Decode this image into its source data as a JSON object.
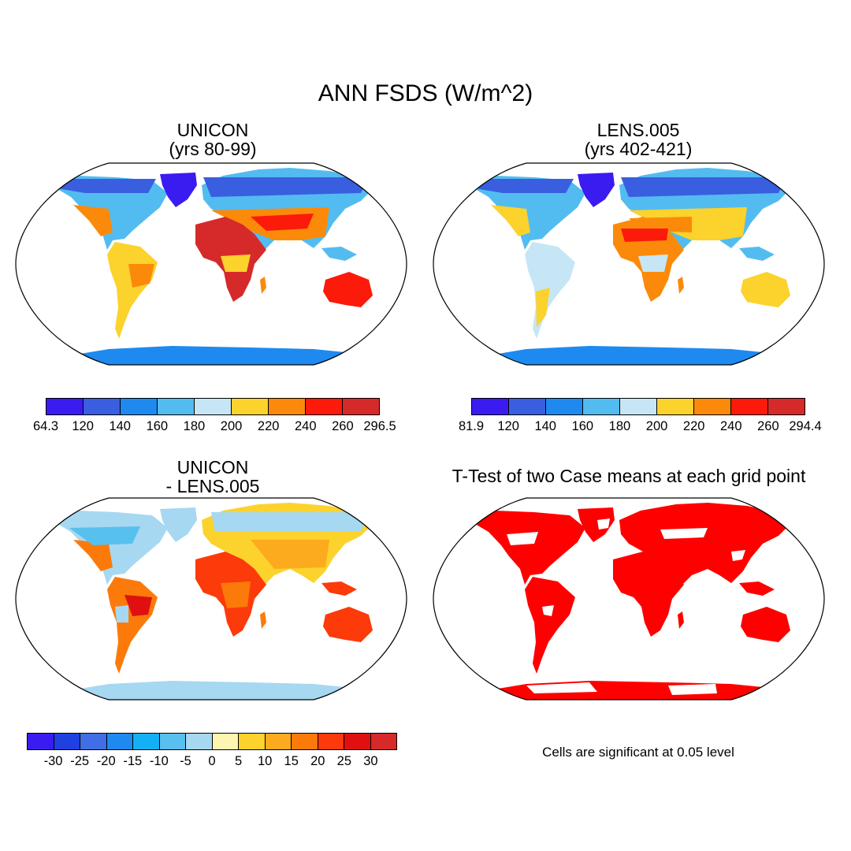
{
  "title": "ANN FSDS (W/m^2)",
  "panels": {
    "top_left": {
      "title_line1": "UNICON",
      "title_line2": "(yrs 80-99)"
    },
    "top_right": {
      "title_line1": "LENS.005",
      "title_line2": "(yrs 402-421)"
    },
    "bottom_left": {
      "title_line1": "UNICON",
      "title_line2": "- LENS.005"
    },
    "bottom_right": {
      "title": "T-Test of two Case means at each grid point",
      "note": "Cells are significant at 0.05 level"
    }
  },
  "colorbars": {
    "top_left": {
      "colors": [
        "#3a1cf0",
        "#3a5ee0",
        "#1e8af0",
        "#52bcf0",
        "#c6e6f5",
        "#fcd22c",
        "#fc8a0a",
        "#fc1a0a",
        "#d62a2a"
      ],
      "labels": [
        "64.3",
        "120",
        "140",
        "160",
        "180",
        "200",
        "220",
        "240",
        "260",
        "296.5"
      ]
    },
    "top_right": {
      "colors": [
        "#3a1cf0",
        "#3a5ee0",
        "#1e8af0",
        "#52bcf0",
        "#c6e6f5",
        "#fcd22c",
        "#fc8a0a",
        "#fc1a0a",
        "#d62a2a"
      ],
      "labels": [
        "81.9",
        "120",
        "140",
        "160",
        "180",
        "200",
        "220",
        "240",
        "260",
        "294.4"
      ]
    },
    "bottom_left": {
      "colors": [
        "#3a1cf0",
        "#2040e0",
        "#3f6ee6",
        "#1e8af0",
        "#14b0f5",
        "#58c0ee",
        "#a6d8f2",
        "#fdf6b0",
        "#fcd22c",
        "#fcaa1e",
        "#fc7a0a",
        "#fc3a0a",
        "#e01010",
        "#d62a2a"
      ],
      "labels": [
        "-30",
        "-25",
        "-20",
        "-15",
        "-10",
        "-5",
        "0",
        "5",
        "10",
        "15",
        "20",
        "25",
        "30"
      ]
    }
  },
  "colors": {
    "significant": "#ff0000",
    "frame": "#000000"
  }
}
